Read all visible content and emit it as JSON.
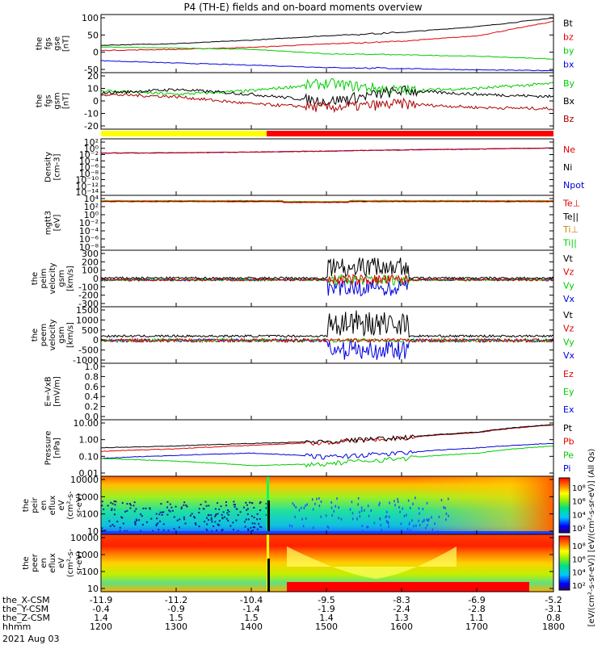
{
  "title": "P4 (TH-E) fields and on-board moments overview",
  "panels": [
    {
      "id": "p1",
      "ylabel": [
        "the",
        "fgs",
        "gse",
        "[nT]"
      ],
      "yticks": [
        "100",
        "50",
        "0",
        "-50"
      ],
      "legend": [
        {
          "t": "Bt",
          "c": "#000000"
        },
        {
          "t": "bz",
          "c": "#e00000"
        },
        {
          "t": "by",
          "c": "#00cc00"
        },
        {
          "t": "bx",
          "c": "#0000dd"
        }
      ]
    },
    {
      "id": "p2",
      "ylabel": [
        "the",
        "fgs",
        "gsm",
        "[nT]"
      ],
      "yticks": [
        "20",
        "10",
        "0",
        "-10",
        "-20"
      ],
      "legend": [
        {
          "t": "By",
          "c": "#00cc00"
        },
        {
          "t": "Bx",
          "c": "#000000"
        },
        {
          "t": "Bz",
          "c": "#aa0000"
        }
      ]
    },
    {
      "id": "p3",
      "ylabel": [
        "Density",
        "[cm-3]"
      ],
      "yticks": [
        "10²",
        "10⁰",
        "10⁻²",
        "10⁻⁴",
        "10⁻⁶",
        "10⁻⁸",
        "10⁻¹⁰",
        "10⁻¹²",
        "10⁻¹⁴"
      ],
      "legend": [
        {
          "t": "Ne",
          "c": "#e00000"
        },
        {
          "t": "Ni",
          "c": "#000000"
        },
        {
          "t": "Npot",
          "c": "#0000dd"
        }
      ]
    },
    {
      "id": "p4",
      "ylabel": [
        "mgtt3",
        "[eV]"
      ],
      "yticks": [
        "10⁴",
        "10²",
        "10⁰",
        "10⁻²",
        "10⁻⁴",
        "10⁻⁶",
        "10⁻⁸"
      ],
      "legend": [
        {
          "t": "Te⊥",
          "c": "#e00000"
        },
        {
          "t": "Te||",
          "c": "#000000"
        },
        {
          "t": "Ti⊥",
          "c": "#cc8800"
        },
        {
          "t": "Ti||",
          "c": "#00cc00"
        }
      ]
    },
    {
      "id": "p5",
      "ylabel": [
        "the",
        "peim",
        "velocity",
        "gsm",
        "[km/s]"
      ],
      "yticks": [
        "300",
        "200",
        "100",
        "0",
        "-100",
        "-200",
        "-300"
      ],
      "legend": [
        {
          "t": "Vt",
          "c": "#000000"
        },
        {
          "t": "Vz",
          "c": "#e00000"
        },
        {
          "t": "Vy",
          "c": "#00cc00"
        },
        {
          "t": "Vx",
          "c": "#0000dd"
        }
      ]
    },
    {
      "id": "p6",
      "ylabel": [
        "the",
        "peem",
        "velocity",
        "gsm",
        "[km/s]"
      ],
      "yticks": [
        "1500",
        "1000",
        "500",
        "0",
        "-500",
        "-1000"
      ],
      "legend": [
        {
          "t": "Vt",
          "c": "#000000"
        },
        {
          "t": "Vz",
          "c": "#e00000"
        },
        {
          "t": "Vy",
          "c": "#00cc00"
        },
        {
          "t": "Vx",
          "c": "#0000dd"
        }
      ]
    },
    {
      "id": "p7",
      "ylabel": [
        "E=-VxB",
        "[mV/m]"
      ],
      "yticks": [
        "1.0",
        "0.8",
        "0.6",
        "0.4",
        "0.2",
        "0.0"
      ],
      "legend": [
        {
          "t": "Ez",
          "c": "#e00000"
        },
        {
          "t": "Ey",
          "c": "#00cc00"
        },
        {
          "t": "Ex",
          "c": "#0000dd"
        }
      ]
    },
    {
      "id": "p8",
      "ylabel": [
        "Pressure",
        "[nPa]"
      ],
      "yticks": [
        "10.00",
        "1.00",
        "0.10",
        "0.01"
      ],
      "legend": [
        {
          "t": "Pt",
          "c": "#000000"
        },
        {
          "t": "Pb",
          "c": "#e00000"
        },
        {
          "t": "Pe",
          "c": "#00cc00"
        },
        {
          "t": "Pi",
          "c": "#0000dd"
        }
      ]
    },
    {
      "id": "p9",
      "ylabel": [
        "the",
        "peir",
        "en",
        "eflux",
        "eV",
        "(cm²-s-",
        "sr-eV)"
      ],
      "yticks": [
        "10000",
        "1000",
        "100",
        "10"
      ],
      "legend": []
    },
    {
      "id": "p10",
      "ylabel": [
        "the",
        "peer",
        "en",
        "eflux",
        "eV",
        "(cm²-s-",
        "sr-eV)"
      ],
      "yticks": [
        "10000",
        "1000",
        "100",
        "10"
      ],
      "legend": []
    }
  ],
  "colorbar": {
    "label": "[eV/(cm²-s-sr-eV)] [eV/(cm²-s-sr-eV)] (All Qs)",
    "ticks_top": [
      "10⁸",
      "10⁶",
      "10⁴",
      "10²"
    ],
    "ticks_bot": [
      "10⁸",
      "10⁶",
      "10⁴",
      "10²"
    ]
  },
  "xaxis": {
    "rows": [
      {
        "label": "the_X-CSM",
        "values": [
          "-11.9",
          "-11.2",
          "-10.4",
          "-9.5",
          "-8.3",
          "-6.9",
          "-5.2"
        ]
      },
      {
        "label": "the_Y-CSM",
        "values": [
          "-0.4",
          "-0.9",
          "-1.4",
          "-1.9",
          "-2.4",
          "-2.8",
          "-3.1"
        ]
      },
      {
        "label": "the_Z-CSM",
        "values": [
          "1.4",
          "1.5",
          "1.5",
          "1.4",
          "1.3",
          "1.1",
          "0.8"
        ]
      },
      {
        "label": "hhmm",
        "values": [
          "1200",
          "1300",
          "1400",
          "1500",
          "1600",
          "1700",
          "1800"
        ]
      }
    ],
    "date": "2021 Aug 03"
  },
  "chart_data": {
    "type": "line",
    "title": "P4 (TH-E) fields and on-board moments overview",
    "x": [
      "1200",
      "1300",
      "1400",
      "1500",
      "1600",
      "1700",
      "1800"
    ],
    "series": [
      {
        "name": "Bt",
        "panel": "p1",
        "values": [
          20,
          25,
          35,
          48,
          58,
          75,
          100
        ]
      },
      {
        "name": "bz",
        "panel": "p1",
        "values": [
          5,
          8,
          14,
          24,
          32,
          48,
          90
        ]
      },
      {
        "name": "by",
        "panel": "p1",
        "values": [
          15,
          12,
          8,
          -5,
          -8,
          -12,
          -20
        ]
      },
      {
        "name": "bx",
        "panel": "p1",
        "values": [
          -25,
          -32,
          -38,
          -45,
          -48,
          -52,
          -54
        ]
      },
      {
        "name": "By",
        "panel": "p2",
        "values": [
          7,
          4,
          7,
          13,
          7,
          9,
          13
        ]
      },
      {
        "name": "Bx",
        "panel": "p2",
        "values": [
          5,
          8,
          4,
          -2,
          7,
          4,
          2
        ]
      },
      {
        "name": "Bz",
        "panel": "p2",
        "values": [
          4,
          2,
          -4,
          -7,
          -4,
          -7,
          -8
        ]
      },
      {
        "name": "Ne",
        "panel": "p3",
        "values": [
          0.05,
          0.06,
          0.1,
          0.2,
          0.5,
          1.0,
          2.0
        ]
      },
      {
        "name": "Pt",
        "panel": "p8",
        "values": [
          0.4,
          0.5,
          0.7,
          0.9,
          1.5,
          3.0,
          8.0
        ]
      },
      {
        "name": "Pb",
        "panel": "p8",
        "values": [
          0.25,
          0.35,
          0.55,
          0.8,
          1.4,
          2.8,
          7.5
        ]
      },
      {
        "name": "Pe",
        "panel": "p8",
        "values": [
          0.1,
          0.07,
          0.04,
          0.05,
          0.1,
          0.2,
          0.5
        ]
      },
      {
        "name": "Pi",
        "panel": "p8",
        "values": [
          0.1,
          0.15,
          0.2,
          0.12,
          0.2,
          0.4,
          0.7
        ]
      }
    ],
    "xlabel": "hhmm",
    "date": "2021 Aug 03"
  }
}
